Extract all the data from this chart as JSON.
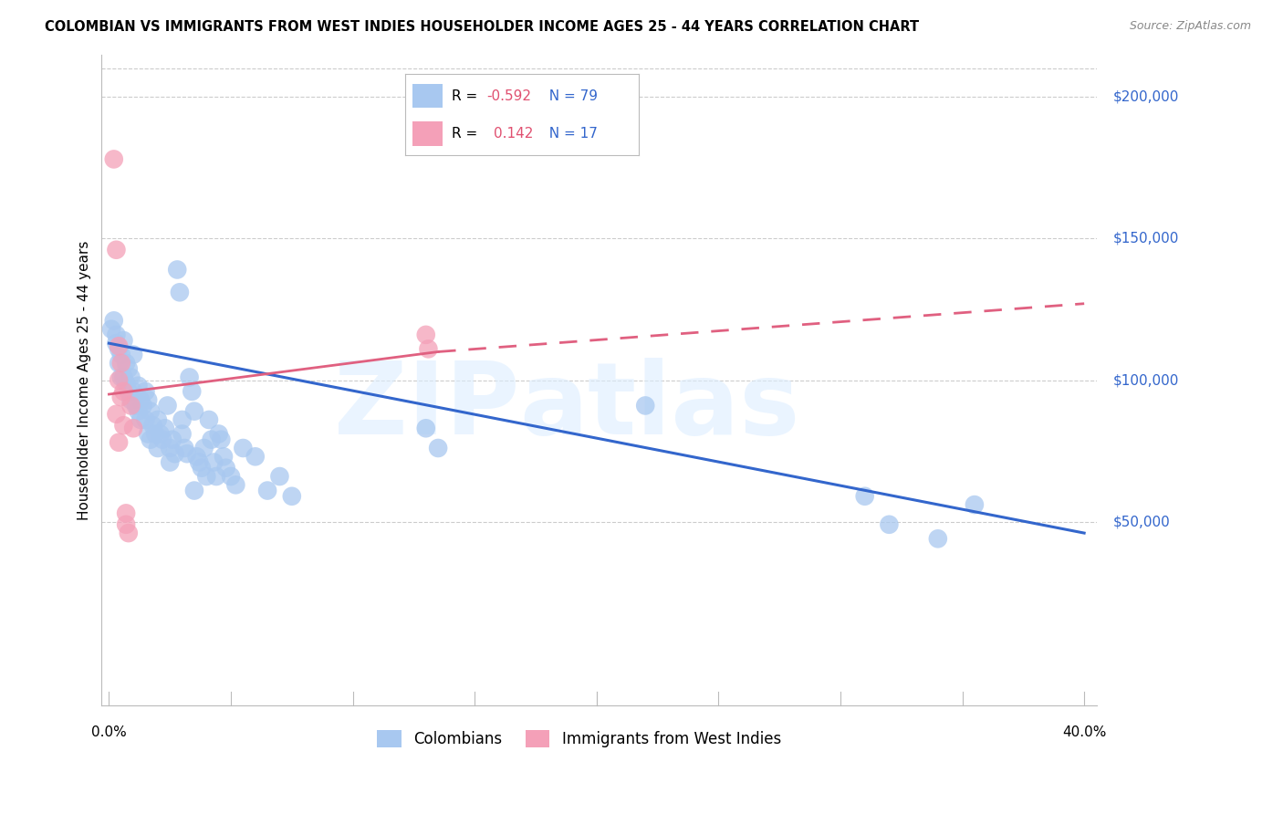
{
  "title": "COLOMBIAN VS IMMIGRANTS FROM WEST INDIES HOUSEHOLDER INCOME AGES 25 - 44 YEARS CORRELATION CHART",
  "source": "Source: ZipAtlas.com",
  "ylabel": "Householder Income Ages 25 - 44 years",
  "y_tick_labels": [
    "$50,000",
    "$100,000",
    "$150,000",
    "$200,000"
  ],
  "y_tick_values": [
    50000,
    100000,
    150000,
    200000
  ],
  "xlim": [
    0.0,
    0.4
  ],
  "ylim": [
    0,
    215000
  ],
  "legend_blue_r": "-0.592",
  "legend_blue_n": "79",
  "legend_pink_r": "0.142",
  "legend_pink_n": "17",
  "legend_label_blue": "Colombians",
  "legend_label_pink": "Immigrants from West Indies",
  "blue_color": "#A8C8F0",
  "pink_color": "#F4A0B8",
  "trendline_blue_color": "#3366CC",
  "trendline_pink_color": "#E06080",
  "blue_dots": [
    [
      0.001,
      118000
    ],
    [
      0.002,
      121000
    ],
    [
      0.003,
      116000
    ],
    [
      0.003,
      113000
    ],
    [
      0.004,
      111000
    ],
    [
      0.004,
      106000
    ],
    [
      0.005,
      109000
    ],
    [
      0.005,
      101000
    ],
    [
      0.006,
      114000
    ],
    [
      0.006,
      101000
    ],
    [
      0.007,
      106000
    ],
    [
      0.007,
      99000
    ],
    [
      0.008,
      104000
    ],
    [
      0.008,
      96000
    ],
    [
      0.009,
      101000
    ],
    [
      0.009,
      93000
    ],
    [
      0.01,
      109000
    ],
    [
      0.01,
      96000
    ],
    [
      0.011,
      91000
    ],
    [
      0.012,
      98000
    ],
    [
      0.012,
      89000
    ],
    [
      0.013,
      93000
    ],
    [
      0.013,
      86000
    ],
    [
      0.014,
      91000
    ],
    [
      0.015,
      96000
    ],
    [
      0.015,
      86000
    ],
    [
      0.016,
      93000
    ],
    [
      0.016,
      81000
    ],
    [
      0.017,
      89000
    ],
    [
      0.017,
      79000
    ],
    [
      0.018,
      84000
    ],
    [
      0.019,
      81000
    ],
    [
      0.02,
      86000
    ],
    [
      0.02,
      76000
    ],
    [
      0.021,
      81000
    ],
    [
      0.022,
      79000
    ],
    [
      0.023,
      83000
    ],
    [
      0.024,
      91000
    ],
    [
      0.025,
      76000
    ],
    [
      0.025,
      71000
    ],
    [
      0.026,
      79000
    ],
    [
      0.027,
      74000
    ],
    [
      0.028,
      139000
    ],
    [
      0.029,
      131000
    ],
    [
      0.03,
      86000
    ],
    [
      0.03,
      81000
    ],
    [
      0.031,
      76000
    ],
    [
      0.032,
      74000
    ],
    [
      0.033,
      101000
    ],
    [
      0.034,
      96000
    ],
    [
      0.035,
      89000
    ],
    [
      0.035,
      61000
    ],
    [
      0.036,
      73000
    ],
    [
      0.037,
      71000
    ],
    [
      0.038,
      69000
    ],
    [
      0.039,
      76000
    ],
    [
      0.04,
      66000
    ],
    [
      0.041,
      86000
    ],
    [
      0.042,
      79000
    ],
    [
      0.043,
      71000
    ],
    [
      0.044,
      66000
    ],
    [
      0.045,
      81000
    ],
    [
      0.046,
      79000
    ],
    [
      0.047,
      73000
    ],
    [
      0.048,
      69000
    ],
    [
      0.05,
      66000
    ],
    [
      0.052,
      63000
    ],
    [
      0.055,
      76000
    ],
    [
      0.06,
      73000
    ],
    [
      0.065,
      61000
    ],
    [
      0.07,
      66000
    ],
    [
      0.075,
      59000
    ],
    [
      0.13,
      83000
    ],
    [
      0.135,
      76000
    ],
    [
      0.22,
      91000
    ],
    [
      0.31,
      59000
    ],
    [
      0.32,
      49000
    ],
    [
      0.34,
      44000
    ],
    [
      0.355,
      56000
    ]
  ],
  "pink_dots": [
    [
      0.002,
      178000
    ],
    [
      0.003,
      146000
    ],
    [
      0.004,
      112000
    ],
    [
      0.004,
      100000
    ],
    [
      0.005,
      106000
    ],
    [
      0.005,
      94000
    ],
    [
      0.006,
      96000
    ],
    [
      0.006,
      84000
    ],
    [
      0.007,
      53000
    ],
    [
      0.007,
      49000
    ],
    [
      0.008,
      46000
    ],
    [
      0.009,
      91000
    ],
    [
      0.01,
      83000
    ],
    [
      0.13,
      116000
    ],
    [
      0.131,
      111000
    ],
    [
      0.003,
      88000
    ],
    [
      0.004,
      78000
    ]
  ],
  "blue_trendline": [
    [
      0.0,
      113000
    ],
    [
      0.4,
      46000
    ]
  ],
  "pink_trendline_solid": [
    [
      0.0,
      95000
    ],
    [
      0.135,
      110000
    ]
  ],
  "pink_trendline_dashed": [
    [
      0.135,
      110000
    ],
    [
      0.4,
      127000
    ]
  ]
}
